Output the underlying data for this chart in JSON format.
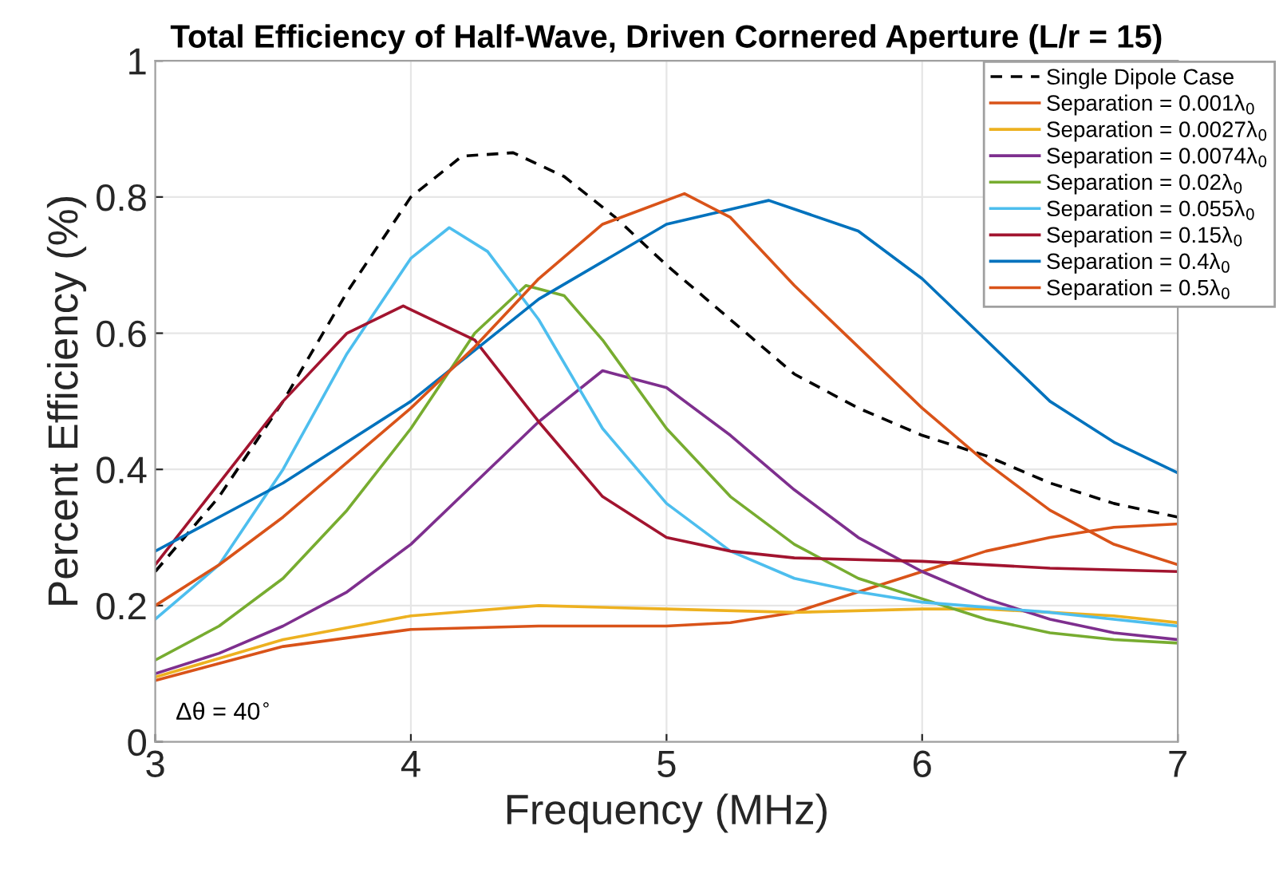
{
  "chart_data": {
    "type": "line",
    "title": "Total Efficiency of Half-Wave, Driven Cornered Aperture (L/r = 15)",
    "xlabel": "Frequency (MHz)",
    "ylabel": "Percent Efficiency (%)",
    "xlim": [
      3,
      7
    ],
    "ylim": [
      0,
      1
    ],
    "xticks": [
      3,
      4,
      5,
      6,
      7
    ],
    "yticks": [
      0,
      0.2,
      0.4,
      0.6,
      0.8,
      1
    ],
    "grid": true,
    "legend": "top right",
    "annotations": [
      {
        "text": "Δθ = 40$^{∘}$"
      }
    ],
    "series": [
      {
        "name": "Single Dipole Case",
        "color": "#000000",
        "line_style": "dashed",
        "x": [
          3,
          3.25,
          3.5,
          3.75,
          4.0,
          4.2,
          4.4,
          4.6,
          4.8,
          5.0,
          5.25,
          5.5,
          5.75,
          6.0,
          6.25,
          6.5,
          6.75,
          7.0
        ],
        "values": [
          0.25,
          0.36,
          0.5,
          0.66,
          0.8,
          0.86,
          0.865,
          0.83,
          0.77,
          0.7,
          0.62,
          0.54,
          0.49,
          0.45,
          0.42,
          0.38,
          0.35,
          0.33
        ]
      },
      {
        "name": "Separation = 0.001λ$_{0}$",
        "color": "#d95319",
        "x": [
          3,
          3.5,
          4.0,
          4.5,
          5.0,
          5.25,
          5.5,
          5.75,
          6.0,
          6.25,
          6.5,
          6.75,
          7.0
        ],
        "values": [
          0.09,
          0.14,
          0.165,
          0.17,
          0.17,
          0.175,
          0.19,
          0.22,
          0.25,
          0.28,
          0.3,
          0.315,
          0.32
        ]
      },
      {
        "name": "Separation = 0.0027λ$_{0}$",
        "color": "#edb120",
        "x": [
          3,
          3.5,
          4.0,
          4.5,
          5.0,
          5.5,
          6.0,
          6.25,
          6.5,
          6.75,
          7.0
        ],
        "values": [
          0.095,
          0.15,
          0.185,
          0.2,
          0.195,
          0.19,
          0.195,
          0.195,
          0.19,
          0.185,
          0.175
        ]
      },
      {
        "name": "Separation = 0.0074λ$_{0}$",
        "color": "#7e2f8e",
        "x": [
          3,
          3.25,
          3.5,
          3.75,
          4.0,
          4.25,
          4.5,
          4.75,
          5.0,
          5.25,
          5.5,
          5.75,
          6.0,
          6.25,
          6.5,
          6.75,
          7.0
        ],
        "values": [
          0.1,
          0.13,
          0.17,
          0.22,
          0.29,
          0.38,
          0.47,
          0.545,
          0.52,
          0.45,
          0.37,
          0.3,
          0.25,
          0.21,
          0.18,
          0.16,
          0.15
        ]
      },
      {
        "name": "Separation = 0.02λ$_{0}$",
        "color": "#77ac30",
        "x": [
          3,
          3.25,
          3.5,
          3.75,
          4.0,
          4.25,
          4.45,
          4.6,
          4.75,
          5.0,
          5.25,
          5.5,
          5.75,
          6.0,
          6.25,
          6.5,
          6.75,
          7.0
        ],
        "values": [
          0.12,
          0.17,
          0.24,
          0.34,
          0.46,
          0.6,
          0.67,
          0.655,
          0.59,
          0.46,
          0.36,
          0.29,
          0.24,
          0.21,
          0.18,
          0.16,
          0.15,
          0.145
        ]
      },
      {
        "name": "Separation = 0.055λ$_{0}$",
        "color": "#4dbeee",
        "x": [
          3,
          3.25,
          3.5,
          3.75,
          4.0,
          4.15,
          4.3,
          4.5,
          4.75,
          5.0,
          5.25,
          5.5,
          5.75,
          6.0,
          6.5,
          7.0
        ],
        "values": [
          0.18,
          0.26,
          0.4,
          0.57,
          0.71,
          0.755,
          0.72,
          0.62,
          0.46,
          0.35,
          0.28,
          0.24,
          0.22,
          0.205,
          0.19,
          0.17
        ]
      },
      {
        "name": "Separation = 0.15λ$_{0}$",
        "color": "#a2142f",
        "x": [
          3,
          3.25,
          3.5,
          3.75,
          3.97,
          4.25,
          4.5,
          4.75,
          5.0,
          5.25,
          5.5,
          6.0,
          6.5,
          7.0
        ],
        "values": [
          0.26,
          0.38,
          0.5,
          0.6,
          0.64,
          0.59,
          0.47,
          0.36,
          0.3,
          0.28,
          0.27,
          0.265,
          0.255,
          0.25
        ]
      },
      {
        "name": "Separation = 0.4λ$_{0}$",
        "color": "#0072bd",
        "x": [
          3,
          3.5,
          4.0,
          4.5,
          5.0,
          5.4,
          5.75,
          6.0,
          6.25,
          6.5,
          6.75,
          7.0
        ],
        "values": [
          0.28,
          0.38,
          0.5,
          0.65,
          0.76,
          0.795,
          0.75,
          0.68,
          0.59,
          0.5,
          0.44,
          0.395
        ]
      },
      {
        "name": "Separation = 0.5λ$_{0}$",
        "color": "#d95319",
        "x": [
          3,
          3.25,
          3.5,
          3.75,
          4.0,
          4.25,
          4.5,
          4.75,
          5.07,
          5.25,
          5.5,
          5.75,
          6.0,
          6.25,
          6.5,
          6.75,
          7.0
        ],
        "values": [
          0.2,
          0.26,
          0.33,
          0.41,
          0.49,
          0.58,
          0.68,
          0.76,
          0.805,
          0.77,
          0.67,
          0.58,
          0.49,
          0.41,
          0.34,
          0.29,
          0.26
        ]
      }
    ]
  }
}
